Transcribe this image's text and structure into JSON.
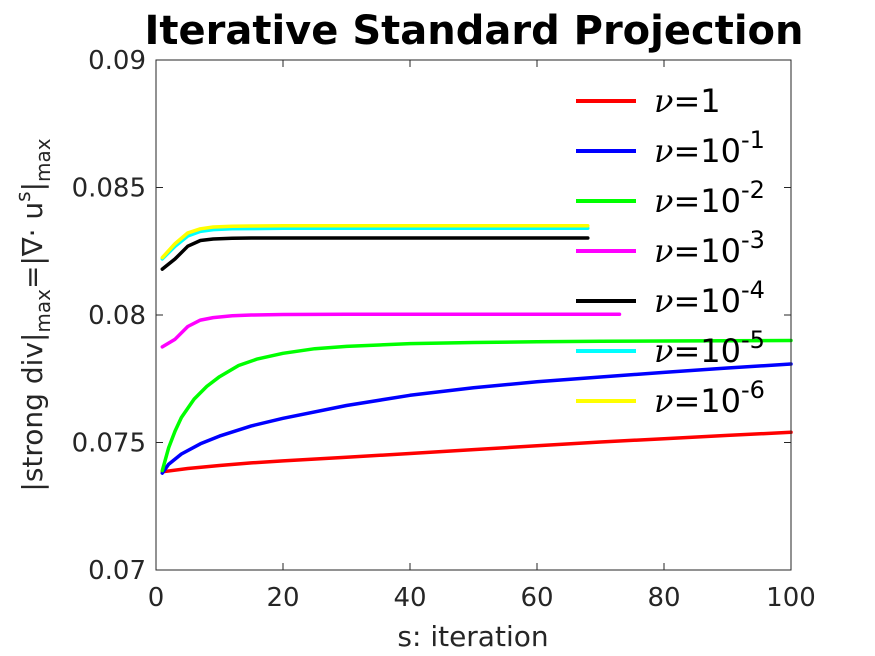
{
  "chart_data": {
    "type": "line",
    "title": "Iterative Standard Projection",
    "xlabel": "s: iteration",
    "ylabel": "|strong div|max=|∇· us|max",
    "ylabel_parts": {
      "a": "|strong div|",
      "a_sub": "max",
      "b": "=|∇· u",
      "b_sup": "s",
      "c": "|",
      "c_sub": "max"
    },
    "xlim": [
      0,
      100
    ],
    "ylim": [
      0.07,
      0.09
    ],
    "x_ticks": [
      0,
      20,
      40,
      60,
      80,
      100
    ],
    "x_tick_labels": [
      "0",
      "20",
      "40",
      "60",
      "80",
      "100"
    ],
    "y_ticks": [
      0.07,
      0.075,
      0.08,
      0.085,
      0.09
    ],
    "y_tick_labels": [
      "0.07",
      "0.075",
      "0.08",
      "0.085",
      "0.09"
    ],
    "grid": false,
    "legend_position": "top-right",
    "series": [
      {
        "name": "ν=1",
        "legend": {
          "nu": "ν",
          "base": "=1",
          "exp": ""
        },
        "color": "#ff0000",
        "x": [
          1,
          5,
          10,
          15,
          20,
          30,
          40,
          50,
          60,
          70,
          80,
          90,
          100
        ],
        "y": [
          0.07385,
          0.07398,
          0.0741,
          0.0742,
          0.07428,
          0.07442,
          0.07457,
          0.07472,
          0.07487,
          0.07502,
          0.07515,
          0.07528,
          0.0754
        ]
      },
      {
        "name": "ν=10^-1",
        "legend": {
          "nu": "ν",
          "base": "=10",
          "exp": "-1"
        },
        "color": "#0000ff",
        "x": [
          1,
          2,
          4,
          7,
          10,
          15,
          20,
          30,
          40,
          50,
          60,
          70,
          80,
          90,
          100
        ],
        "y": [
          0.0738,
          0.07415,
          0.07455,
          0.07495,
          0.07525,
          0.07565,
          0.07595,
          0.07645,
          0.07685,
          0.07715,
          0.07738,
          0.07757,
          0.07775,
          0.07792,
          0.07808
        ]
      },
      {
        "name": "ν=10^-2",
        "legend": {
          "nu": "ν",
          "base": "=10",
          "exp": "-2"
        },
        "color": "#00ff00",
        "x": [
          1,
          2,
          3,
          4,
          6,
          8,
          10,
          13,
          16,
          20,
          25,
          30,
          40,
          50,
          60,
          70,
          80,
          90,
          100
        ],
        "y": [
          0.0739,
          0.0748,
          0.07545,
          0.07598,
          0.0767,
          0.0772,
          0.07758,
          0.07802,
          0.07828,
          0.0785,
          0.07868,
          0.07877,
          0.07888,
          0.07892,
          0.07895,
          0.07897,
          0.07898,
          0.07899,
          0.079
        ]
      },
      {
        "name": "ν=10^-3",
        "legend": {
          "nu": "ν",
          "base": "=10",
          "exp": "-3"
        },
        "color": "#ff00ff",
        "x": [
          1,
          3,
          5,
          7,
          9,
          12,
          15,
          20,
          30,
          40,
          50,
          60,
          73
        ],
        "y": [
          0.07875,
          0.07905,
          0.07955,
          0.0798,
          0.0799,
          0.07997,
          0.08,
          0.08002,
          0.08003,
          0.08003,
          0.08003,
          0.08003,
          0.08003
        ]
      },
      {
        "name": "ν=10^-4",
        "legend": {
          "nu": "ν",
          "base": "=10",
          "exp": "-4"
        },
        "color": "#000000",
        "x": [
          1,
          3,
          5,
          7,
          9,
          12,
          15,
          20,
          30,
          40,
          50,
          60,
          68
        ],
        "y": [
          0.0818,
          0.0822,
          0.0827,
          0.08292,
          0.08298,
          0.08301,
          0.08302,
          0.08302,
          0.08302,
          0.08302,
          0.08302,
          0.08302,
          0.08302
        ]
      },
      {
        "name": "ν=10^-5",
        "legend": {
          "nu": "ν",
          "base": "=10",
          "exp": "-5"
        },
        "color": "#00ffff",
        "x": [
          1,
          3,
          5,
          7,
          9,
          12,
          15,
          20,
          30,
          40,
          50,
          60,
          68
        ],
        "y": [
          0.0822,
          0.0827,
          0.0831,
          0.08328,
          0.08335,
          0.08338,
          0.08339,
          0.0834,
          0.0834,
          0.0834,
          0.0834,
          0.0834,
          0.0834
        ]
      },
      {
        "name": "ν=10^-6",
        "legend": {
          "nu": "ν",
          "base": "=10",
          "exp": "-6"
        },
        "color": "#ffff00",
        "x": [
          1,
          3,
          5,
          7,
          9,
          12,
          15,
          20,
          30,
          40,
          50,
          60,
          68
        ],
        "y": [
          0.08225,
          0.0828,
          0.08322,
          0.08338,
          0.08345,
          0.08348,
          0.08349,
          0.0835,
          0.0835,
          0.0835,
          0.0835,
          0.0835,
          0.0835
        ]
      }
    ]
  }
}
